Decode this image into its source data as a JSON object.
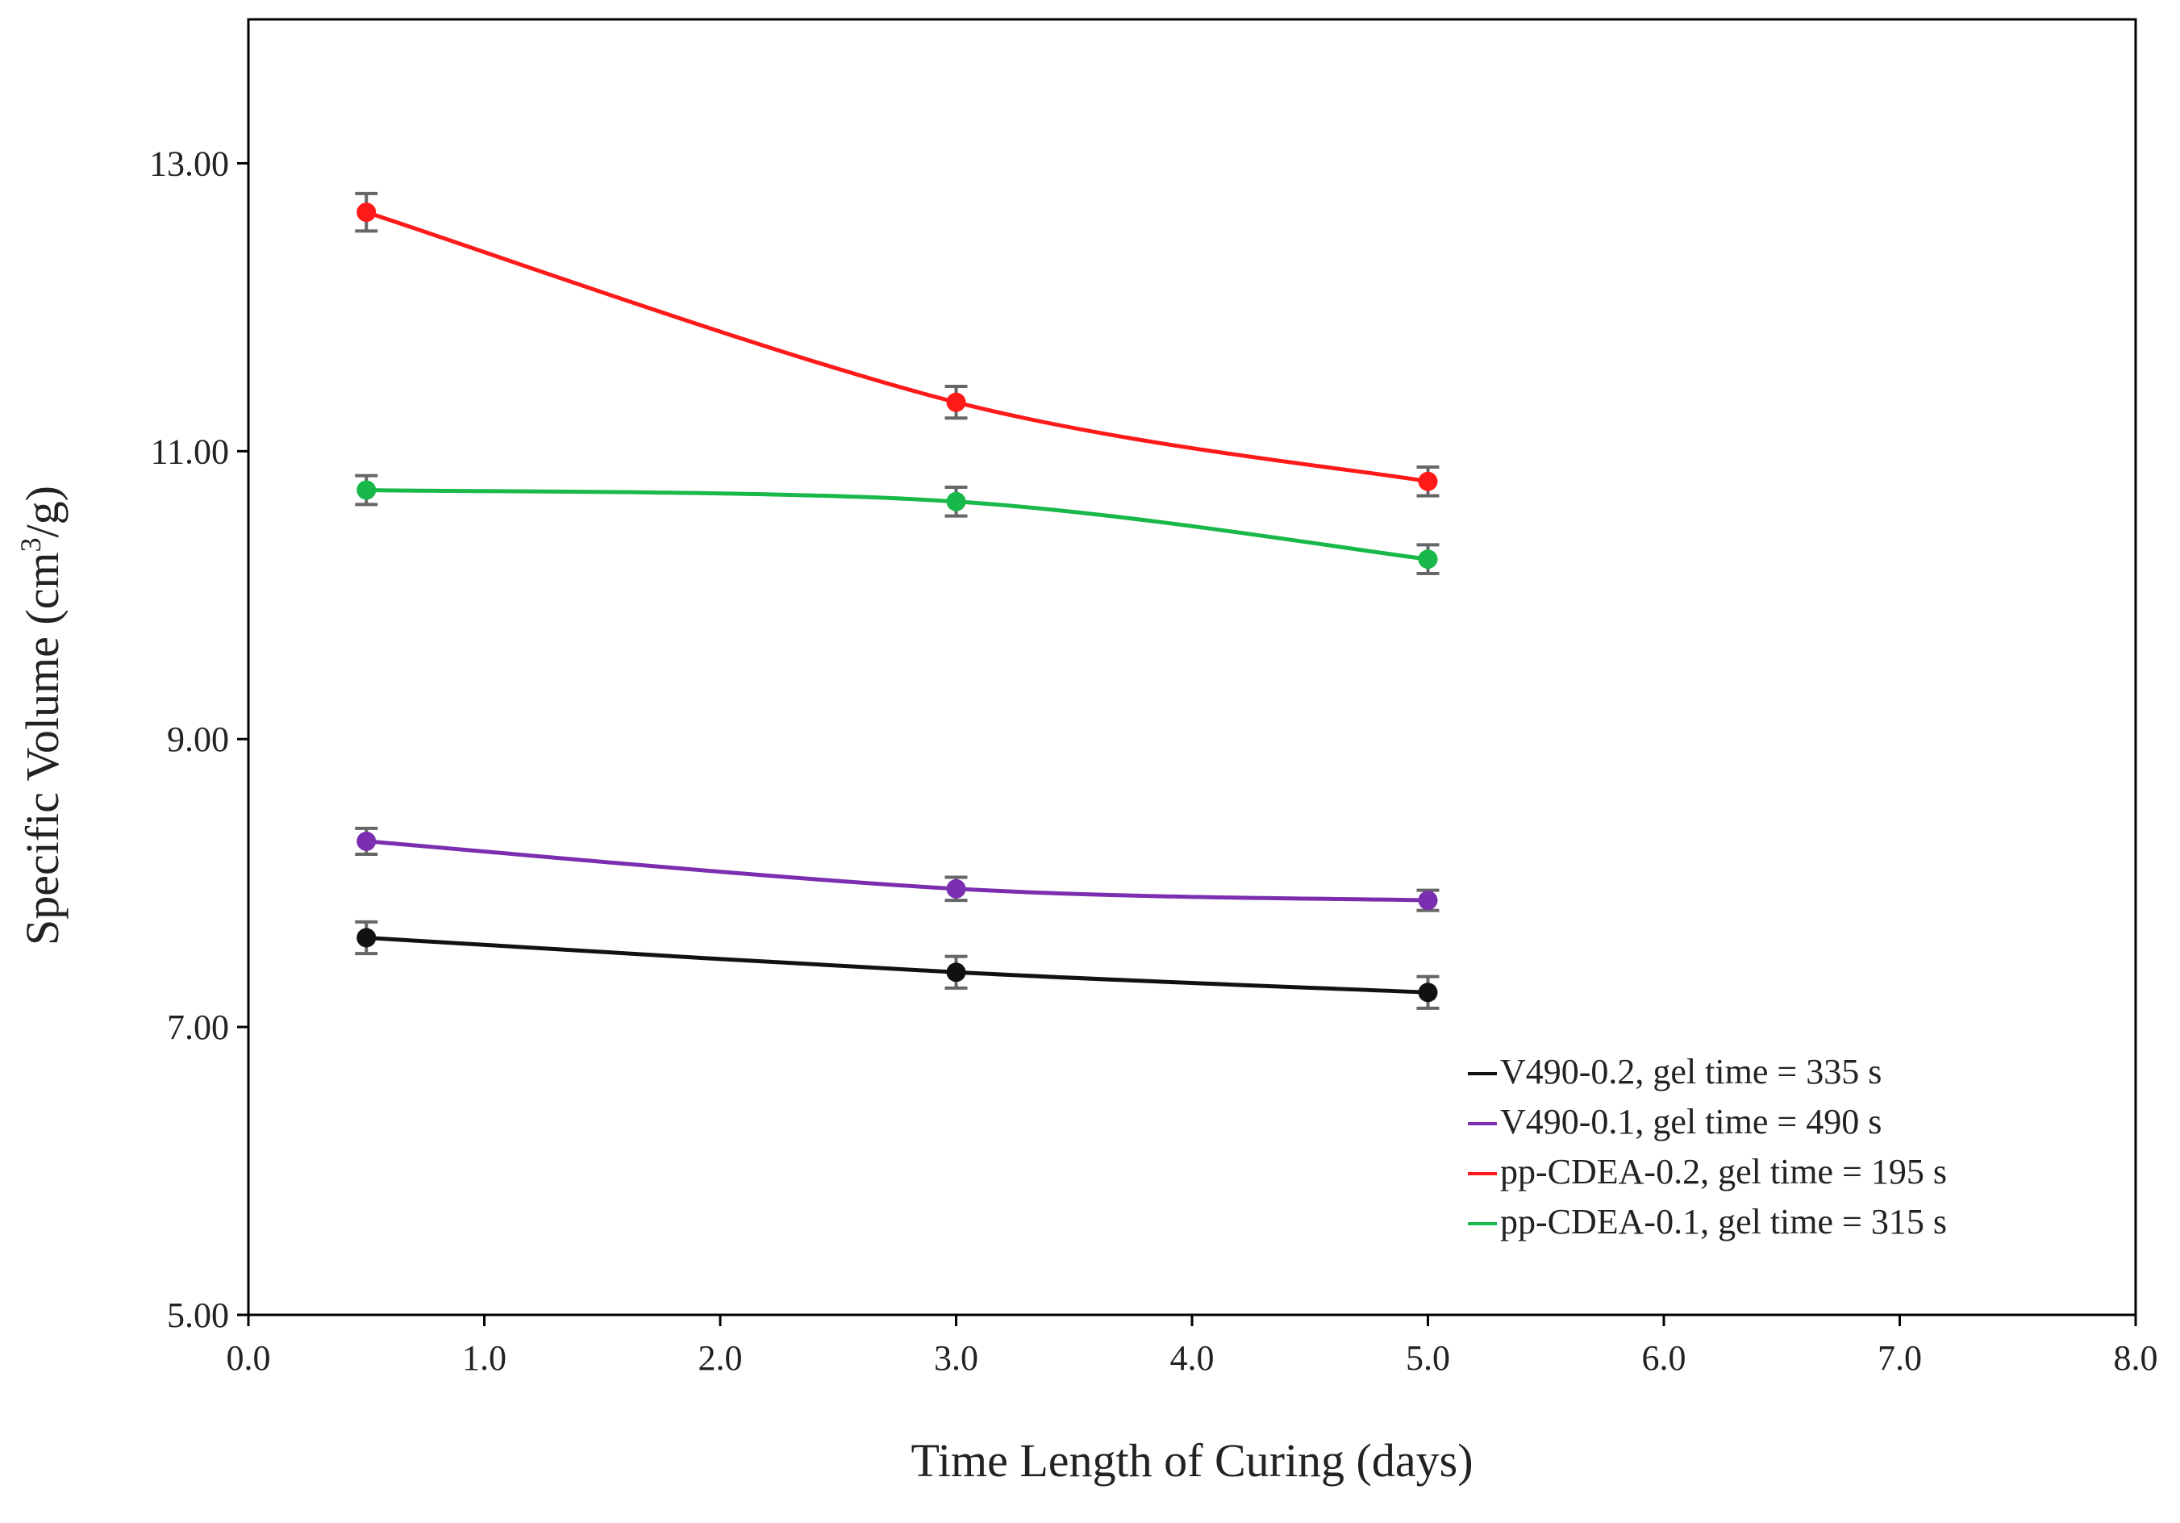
{
  "chart_data": {
    "type": "line",
    "title": "",
    "xlabel": "Time Length of Curing (days)",
    "ylabel_main": "Specific Volume (cm",
    "ylabel_sup": "3",
    "ylabel_tail": "/g)",
    "xlim": [
      0,
      8
    ],
    "ylim": [
      5,
      14
    ],
    "x_ticks": [
      0,
      1,
      2,
      3,
      4,
      5,
      6,
      7,
      8
    ],
    "x_tick_labels": [
      "0.0",
      "1.0",
      "2.0",
      "3.0",
      "4.0",
      "5.0",
      "6.0",
      "7.0",
      "8.0"
    ],
    "y_ticks": [
      5,
      7,
      9,
      11,
      13
    ],
    "y_tick_labels": [
      "5.00",
      "7.00",
      "9.00",
      "11.00",
      "13.00"
    ],
    "grid": false,
    "legend_position": "bottom-right",
    "x": [
      0.5,
      3,
      5
    ],
    "series": [
      {
        "name": "V490-0.2, gel time = 335 s",
        "color": "#111111",
        "values": [
          7.62,
          7.38,
          7.24
        ],
        "errors": [
          0.11,
          0.11,
          0.11
        ]
      },
      {
        "name": "V490-0.1, gel time = 490 s",
        "color": "#7b2fb0",
        "values": [
          8.29,
          7.96,
          7.88
        ],
        "errors": [
          0.09,
          0.08,
          0.07
        ]
      },
      {
        "name": "pp-CDEA-0.2, gel time = 195 s",
        "color": "#ff1a1a",
        "values": [
          12.66,
          11.34,
          10.79
        ],
        "errors": [
          0.13,
          0.11,
          0.1
        ]
      },
      {
        "name": "pp-CDEA-0.1, gel time = 315 s",
        "color": "#19b84a",
        "values": [
          10.73,
          10.65,
          10.25
        ],
        "errors": [
          0.1,
          0.1,
          0.1
        ]
      }
    ],
    "error_bar_color": "#666666"
  }
}
